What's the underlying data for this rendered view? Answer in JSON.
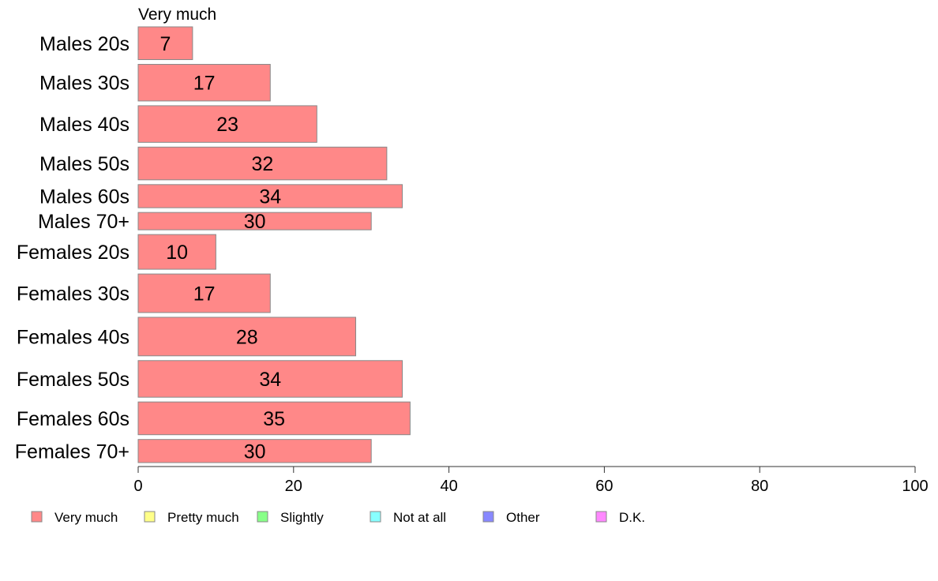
{
  "chart_data": {
    "type": "bar",
    "orientation": "horizontal",
    "stacked": true,
    "series_title": "Very much",
    "categories": [
      "Males 20s",
      "Males 30s",
      "Males 40s",
      "Males 50s",
      "Males 60s",
      "Males 70+",
      "Females 20s",
      "Females 30s",
      "Females 40s",
      "Females 50s",
      "Females 60s",
      "Females 70+"
    ],
    "series": [
      {
        "name": "Very much",
        "color": "#ff8888",
        "values": [
          7,
          17,
          23,
          32,
          34,
          30,
          10,
          17,
          28,
          34,
          35,
          30
        ]
      }
    ],
    "relative_weights": [
      0.85,
      0.95,
      0.95,
      0.85,
      0.6,
      0.45,
      0.9,
      1.0,
      1.0,
      0.95,
      0.85,
      0.6
    ],
    "xlim": [
      0,
      100
    ],
    "x_ticks": [
      0,
      20,
      40,
      60,
      80,
      100
    ],
    "grid": false,
    "legend": {
      "position": "bottom",
      "items": [
        {
          "label": "Very much",
          "color": "#ff8888"
        },
        {
          "label": "Pretty much",
          "color": "#ffff88"
        },
        {
          "label": "Slightly",
          "color": "#88ff88"
        },
        {
          "label": "Not at all",
          "color": "#88ffff"
        },
        {
          "label": "Other",
          "color": "#8888ff"
        },
        {
          "label": "D.K.",
          "color": "#ff88ff"
        }
      ]
    }
  }
}
